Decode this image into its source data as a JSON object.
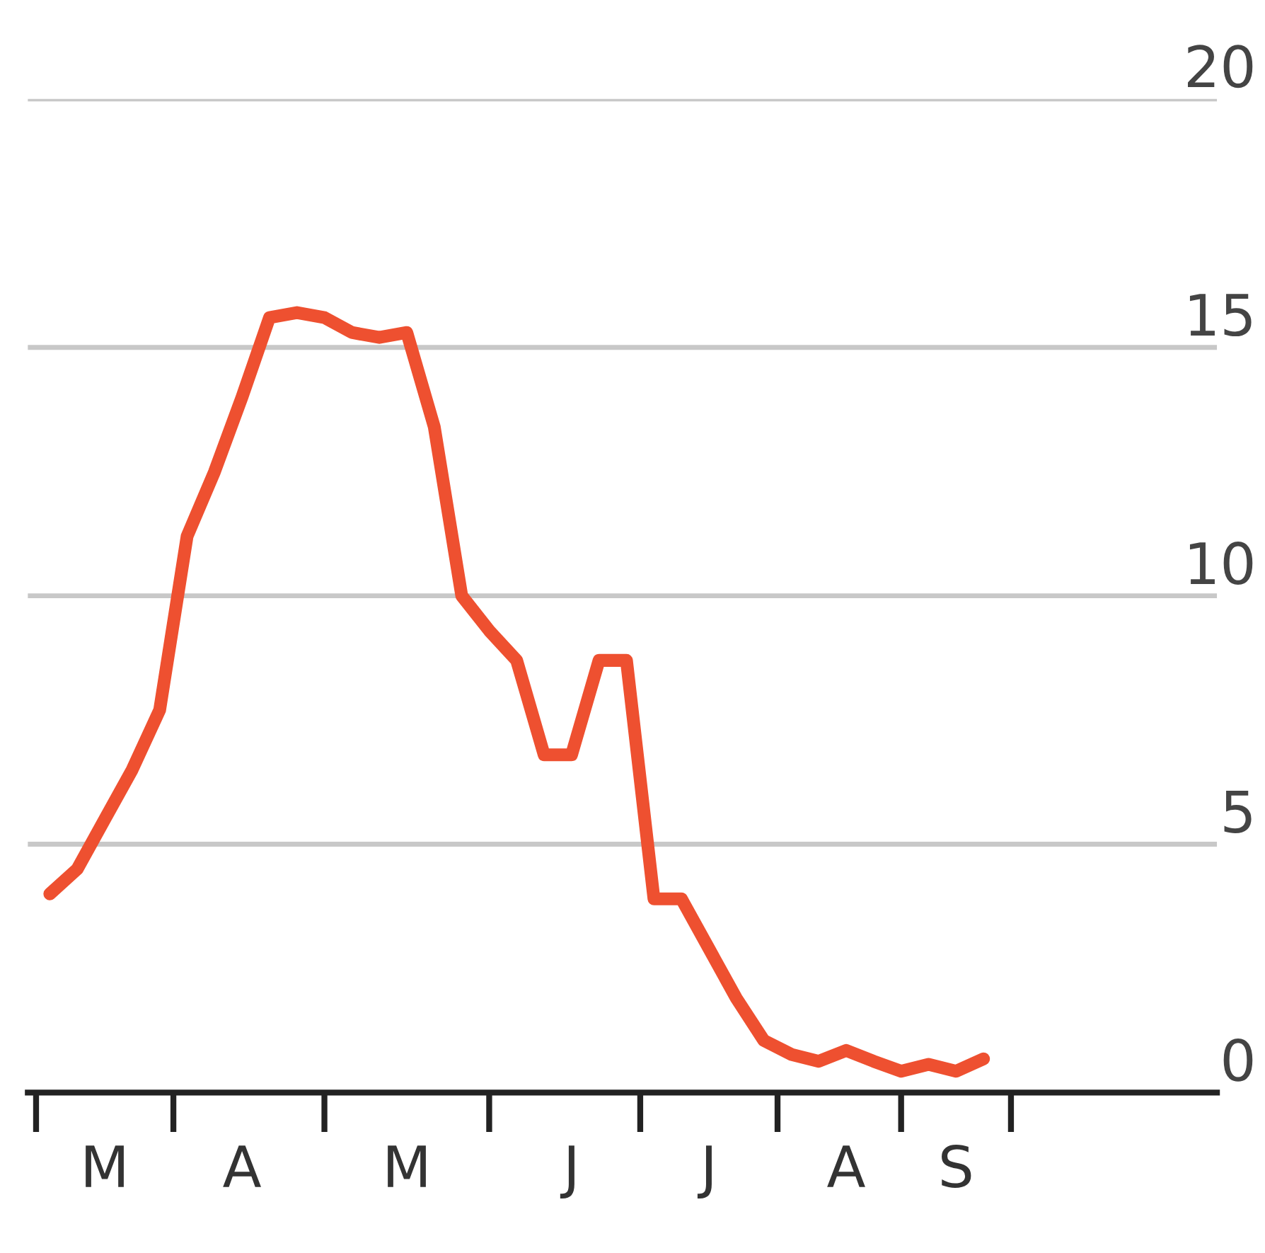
{
  "chart_data": {
    "type": "line",
    "categories": [
      null,
      null,
      "M",
      null,
      null,
      null,
      null,
      "A",
      null,
      null,
      null,
      null,
      null,
      "M",
      null,
      null,
      null,
      null,
      null,
      "J",
      null,
      null,
      null,
      null,
      "J",
      null,
      null,
      null,
      null,
      "A",
      null,
      null,
      null,
      "S",
      null
    ],
    "series": [
      {
        "color": "#ee5030",
        "values": [
          4.0,
          4.5,
          5.5,
          6.5,
          7.7,
          11.2,
          12.5,
          14.0,
          15.6,
          15.7,
          15.6,
          15.3,
          15.2,
          15.3,
          13.4,
          10.0,
          9.3,
          8.7,
          6.8,
          6.8,
          8.7,
          8.7,
          3.9,
          3.9,
          2.9,
          1.9,
          1.05,
          0.77,
          0.63,
          0.85,
          0.63,
          0.43,
          0.57,
          0.43,
          0.68
        ]
      }
    ],
    "ylim": [
      0,
      20
    ],
    "yticks": [
      0,
      5,
      10,
      15,
      20
    ],
    "grid": "y",
    "marker": "none",
    "line_style": "solid"
  }
}
